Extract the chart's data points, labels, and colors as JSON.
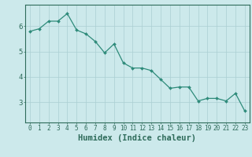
{
  "x": [
    0,
    1,
    2,
    3,
    4,
    5,
    6,
    7,
    8,
    9,
    10,
    11,
    12,
    13,
    14,
    15,
    16,
    17,
    18,
    19,
    20,
    21,
    22,
    23
  ],
  "y": [
    5.8,
    5.9,
    6.2,
    6.2,
    6.5,
    5.85,
    5.7,
    5.4,
    4.95,
    5.3,
    4.55,
    4.35,
    4.35,
    4.25,
    3.9,
    3.55,
    3.6,
    3.6,
    3.05,
    3.15,
    3.15,
    3.05,
    3.35,
    2.65
  ],
  "line_color": "#2e8b7a",
  "marker": "D",
  "marker_size": 2.0,
  "bg_color": "#cce9eb",
  "grid_color": "#aacfd2",
  "xlabel": "Humidex (Indice chaleur)",
  "xlim": [
    -0.5,
    23.5
  ],
  "ylim": [
    2.2,
    6.85
  ],
  "yticks": [
    3,
    4,
    5,
    6
  ],
  "xticks": [
    0,
    1,
    2,
    3,
    4,
    5,
    6,
    7,
    8,
    9,
    10,
    11,
    12,
    13,
    14,
    15,
    16,
    17,
    18,
    19,
    20,
    21,
    22,
    23
  ],
  "tick_color": "#2e6b5a",
  "axis_color": "#2e6b5a",
  "label_fontsize": 6.5,
  "tick_fontsize": 5.5
}
